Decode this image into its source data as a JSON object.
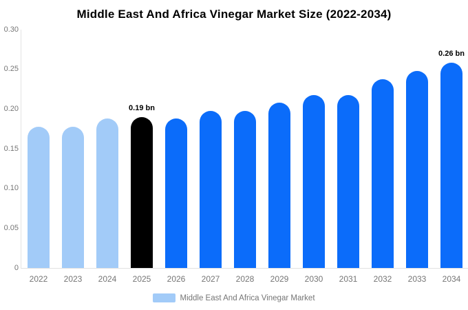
{
  "chart_data": {
    "type": "bar",
    "title": "Middle East And Africa Vinegar Market Size (2022-2034)",
    "xlabel": "",
    "ylabel": "",
    "unit": "bn",
    "ylim": [
      0,
      0.3
    ],
    "grid": false,
    "legend_position": "bottom",
    "ytick_labels": [
      "0.30",
      "0.25",
      "0.20",
      "0.15",
      "0.10",
      "0.05",
      "0"
    ],
    "ytick_values": [
      0.3,
      0.25,
      0.2,
      0.15,
      0.1,
      0.05,
      0
    ],
    "categories": [
      "2022",
      "2023",
      "2024",
      "2025",
      "2026",
      "2027",
      "2028",
      "2029",
      "2030",
      "2031",
      "2032",
      "2033",
      "2034"
    ],
    "series": [
      {
        "name": "Middle East And Africa Vinegar Market",
        "values": [
          0.178,
          0.178,
          0.188,
          0.19,
          0.188,
          0.198,
          0.198,
          0.208,
          0.218,
          0.218,
          0.238,
          0.248,
          0.258
        ]
      }
    ],
    "bar_colors": [
      "#A2CBF8",
      "#A2CBF8",
      "#A2CBF8",
      "#000000",
      "#0B6CFA",
      "#0B6CFA",
      "#0B6CFA",
      "#0B6CFA",
      "#0B6CFA",
      "#0B6CFA",
      "#0B6CFA",
      "#0B6CFA",
      "#0B6CFA"
    ],
    "annotations": [
      {
        "category": "2025",
        "label": "0.19 bn"
      },
      {
        "category": "2034",
        "label": "0.26 bn"
      }
    ],
    "colors": {
      "historical_bar": "#A2CBF8",
      "base_year_bar": "#000000",
      "forecast_bar": "#0B6CFA",
      "axis_line": "#E2E2E2",
      "tick_text": "#757575",
      "annotation_text": "#000000",
      "title_text": "#000000",
      "background": "#FFFFFF"
    },
    "legend": {
      "items": [
        {
          "label": "Middle East And Africa Vinegar Market",
          "color": "#A2CBF8"
        }
      ]
    }
  }
}
